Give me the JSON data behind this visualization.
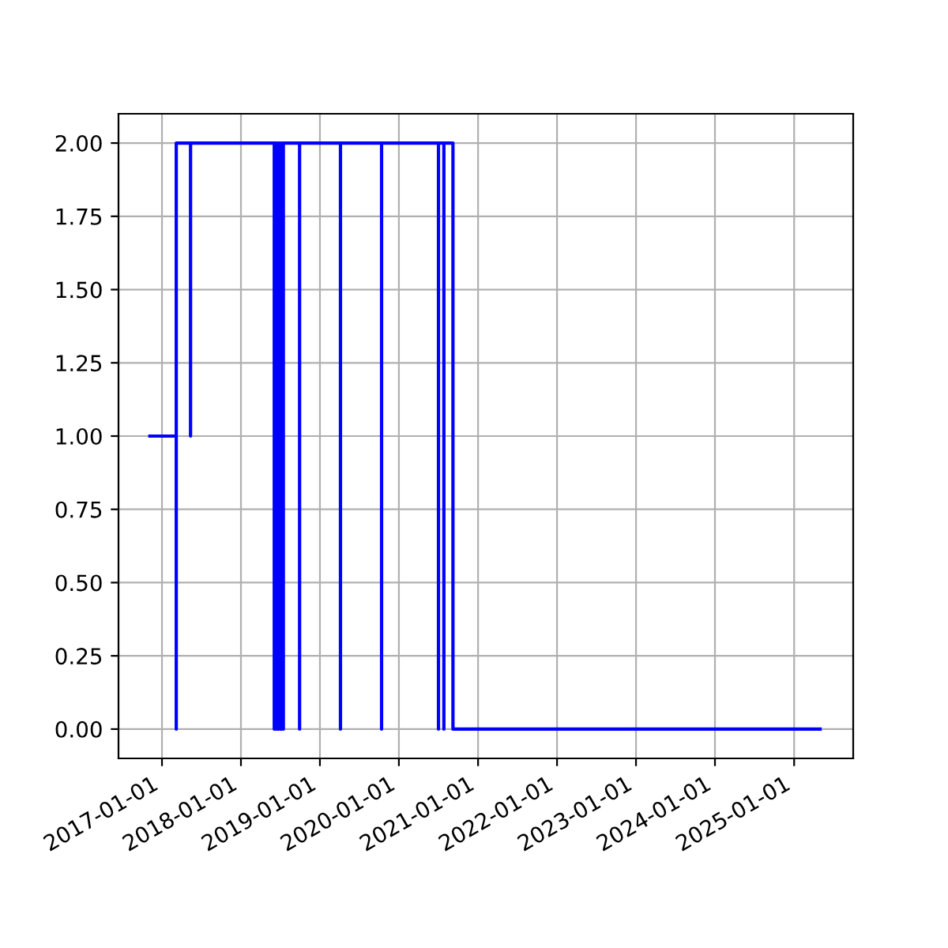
{
  "chart_data": {
    "type": "line",
    "grid": true,
    "marker": "none",
    "line_style": "solid",
    "xlim": [
      "2016-06-14",
      "2025-10-01"
    ],
    "xticks": [
      {
        "value": "2017-01-01",
        "label": "2017-01-01"
      },
      {
        "value": "2018-01-01",
        "label": "2018-01-01"
      },
      {
        "value": "2019-01-01",
        "label": "2019-01-01"
      },
      {
        "value": "2020-01-01",
        "label": "2020-01-01"
      },
      {
        "value": "2021-01-01",
        "label": "2021-01-01"
      },
      {
        "value": "2022-01-01",
        "label": "2022-01-01"
      },
      {
        "value": "2023-01-01",
        "label": "2023-01-01"
      },
      {
        "value": "2024-01-01",
        "label": "2024-01-01"
      },
      {
        "value": "2025-01-01",
        "label": "2025-01-01"
      }
    ],
    "ylim": [
      -0.1,
      2.1
    ],
    "yticks": [
      {
        "value": 0,
        "label": "0.00"
      },
      {
        "value": 0.25,
        "label": "0.25"
      },
      {
        "value": 0.5,
        "label": "0.50"
      },
      {
        "value": 0.75,
        "label": "0.75"
      },
      {
        "value": 1,
        "label": "1.00"
      },
      {
        "value": 1.25,
        "label": "1.25"
      },
      {
        "value": 1.5,
        "label": "1.50"
      },
      {
        "value": 1.75,
        "label": "1.75"
      },
      {
        "value": 2,
        "label": "2.00"
      }
    ],
    "series": [
      {
        "color": "#0000ff",
        "x": [
          "2016-11-06",
          "2017-03-08",
          "2017-03-08",
          "2017-03-08",
          "2017-05-13",
          "2017-05-13",
          "2017-05-13",
          "2018-06-04",
          "2018-06-04",
          "2018-06-10",
          "2018-06-10",
          "2018-06-17",
          "2018-06-17",
          "2018-06-24",
          "2018-06-24",
          "2018-07-02",
          "2018-07-02",
          "2018-07-09",
          "2018-07-09",
          "2018-07-16",
          "2018-07-16",
          "2018-07-16",
          "2018-09-29",
          "2018-09-29",
          "2018-09-29",
          "2019-04-06",
          "2019-04-06",
          "2019-04-06",
          "2019-10-13",
          "2019-10-13",
          "2019-10-13",
          "2020-07-02",
          "2020-07-02",
          "2020-07-02",
          "2020-07-27",
          "2020-07-27",
          "2020-07-27",
          "2020-09-07",
          "2020-09-07",
          "2025-05-01"
        ],
        "values": [
          1,
          1,
          0,
          2,
          2,
          1,
          2,
          2,
          0,
          0,
          2,
          2,
          0,
          0,
          2,
          2,
          0,
          0,
          2,
          2,
          0,
          2,
          2,
          0,
          2,
          2,
          0,
          2,
          2,
          0,
          2,
          2,
          0,
          2,
          2,
          0,
          2,
          2,
          0,
          0
        ]
      }
    ]
  }
}
